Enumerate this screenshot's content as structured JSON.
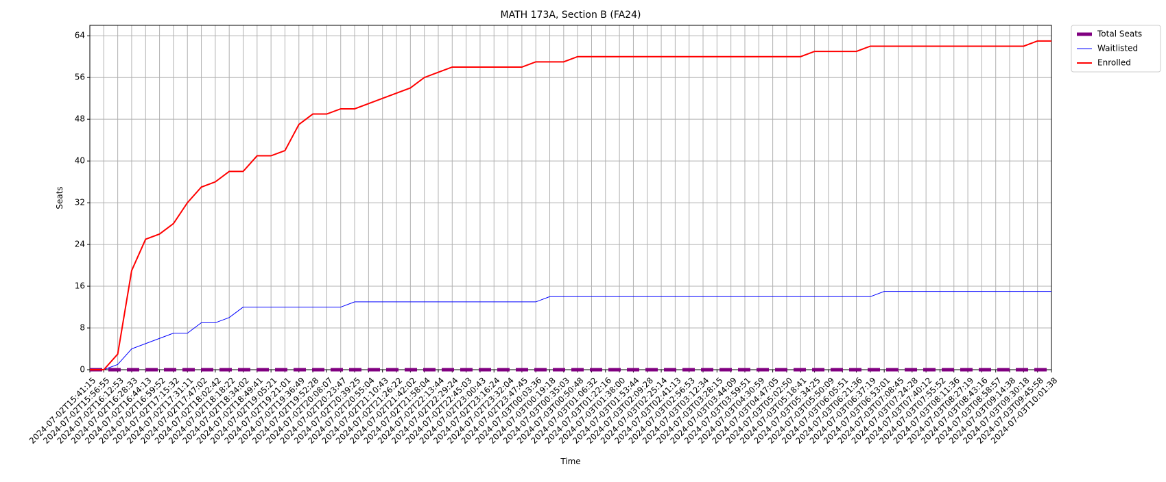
{
  "chart_data": {
    "type": "line",
    "title": "MATH 173A, Section B (FA24)",
    "x_label": "Time",
    "y_label": "Seats",
    "categories": [
      "2024-07-02T15:41:15",
      "2024-07-02T15:56:55",
      "2024-07-02T16:12:53",
      "2024-07-02T16:28:33",
      "2024-07-02T16:44:13",
      "2024-07-02T16:59:52",
      "2024-07-02T17:15:32",
      "2024-07-02T17:31:11",
      "2024-07-02T17:47:02",
      "2024-07-02T18:02:42",
      "2024-07-02T18:18:22",
      "2024-07-02T18:34:02",
      "2024-07-02T18:49:41",
      "2024-07-02T19:05:21",
      "2024-07-02T19:21:01",
      "2024-07-02T19:36:49",
      "2024-07-02T19:52:28",
      "2024-07-02T20:08:07",
      "2024-07-02T20:23:47",
      "2024-07-02T20:39:25",
      "2024-07-02T20:55:04",
      "2024-07-02T21:10:43",
      "2024-07-02T21:26:22",
      "2024-07-02T21:42:02",
      "2024-07-02T21:58:04",
      "2024-07-02T22:13:44",
      "2024-07-02T22:29:24",
      "2024-07-02T22:45:03",
      "2024-07-02T23:00:43",
      "2024-07-02T23:16:24",
      "2024-07-02T23:32:04",
      "2024-07-02T23:47:45",
      "2024-07-03T00:03:36",
      "2024-07-03T00:19:18",
      "2024-07-03T00:35:03",
      "2024-07-03T00:50:48",
      "2024-07-03T01:06:32",
      "2024-07-03T01:22:16",
      "2024-07-03T01:38:00",
      "2024-07-03T01:53:44",
      "2024-07-03T02:09:28",
      "2024-07-03T02:25:14",
      "2024-07-03T02:41:13",
      "2024-07-03T02:56:53",
      "2024-07-03T03:12:34",
      "2024-07-03T03:28:15",
      "2024-07-03T03:44:09",
      "2024-07-03T03:59:51",
      "2024-07-03T04:30:59",
      "2024-07-03T04:47:05",
      "2024-07-03T05:02:50",
      "2024-07-03T05:18:41",
      "2024-07-03T05:34:25",
      "2024-07-03T05:50:09",
      "2024-07-03T06:05:51",
      "2024-07-03T06:21:36",
      "2024-07-03T06:37:19",
      "2024-07-03T06:53:01",
      "2024-07-03T07:08:45",
      "2024-07-03T07:24:28",
      "2024-07-03T07:40:12",
      "2024-07-03T07:55:52",
      "2024-07-03T08:11:36",
      "2024-07-03T08:27:19",
      "2024-07-03T08:43:16",
      "2024-07-03T08:58:57",
      "2024-07-03T09:14:38",
      "2024-07-03T09:30:18",
      "2024-07-03T09:45:58",
      "2024-07-03T10:01:38"
    ],
    "series": [
      {
        "name": "Total Seats",
        "color": "#800080",
        "linestyle": "dashed",
        "values": [
          0,
          0,
          0,
          0,
          0,
          0,
          0,
          0,
          0,
          0,
          0,
          0,
          0,
          0,
          0,
          0,
          0,
          0,
          0,
          0,
          0,
          0,
          0,
          0,
          0,
          0,
          0,
          0,
          0,
          0,
          0,
          0,
          0,
          0,
          0,
          0,
          0,
          0,
          0,
          0,
          0,
          0,
          0,
          0,
          0,
          0,
          0,
          0,
          0,
          0,
          0,
          0,
          0,
          0,
          0,
          0,
          0,
          0,
          0,
          0,
          0,
          0,
          0,
          0,
          0,
          0,
          0,
          0,
          0,
          0
        ]
      },
      {
        "name": "Waitlisted",
        "color": "#0000ff",
        "linestyle": "solid",
        "values": [
          0,
          0,
          1,
          4,
          5,
          6,
          7,
          7,
          9,
          9,
          10,
          12,
          12,
          12,
          12,
          12,
          12,
          12,
          12,
          13,
          13,
          13,
          13,
          13,
          13,
          13,
          13,
          13,
          13,
          13,
          13,
          13,
          13,
          14,
          14,
          14,
          14,
          14,
          14,
          14,
          14,
          14,
          14,
          14,
          14,
          14,
          14,
          14,
          14,
          14,
          14,
          14,
          14,
          14,
          14,
          14,
          14,
          15,
          15,
          15,
          15,
          15,
          15,
          15,
          15,
          15,
          15,
          15,
          15,
          15
        ]
      },
      {
        "name": "Enrolled",
        "color": "#ff0000",
        "linestyle": "solid",
        "values": [
          0,
          0,
          3,
          19,
          25,
          26,
          28,
          32,
          35,
          36,
          38,
          38,
          41,
          41,
          42,
          47,
          49,
          49,
          50,
          50,
          51,
          52,
          53,
          54,
          56,
          57,
          58,
          58,
          58,
          58,
          58,
          58,
          59,
          59,
          59,
          60,
          60,
          60,
          60,
          60,
          60,
          60,
          60,
          60,
          60,
          60,
          60,
          60,
          60,
          60,
          60,
          60,
          61,
          61,
          61,
          61,
          62,
          62,
          62,
          62,
          62,
          62,
          62,
          62,
          62,
          62,
          62,
          62,
          63,
          63
        ]
      }
    ],
    "ylim": [
      0,
      66
    ],
    "yticks": [
      0,
      8,
      16,
      24,
      32,
      40,
      48,
      56,
      64
    ],
    "grid": true,
    "legend": "outside upper right"
  }
}
